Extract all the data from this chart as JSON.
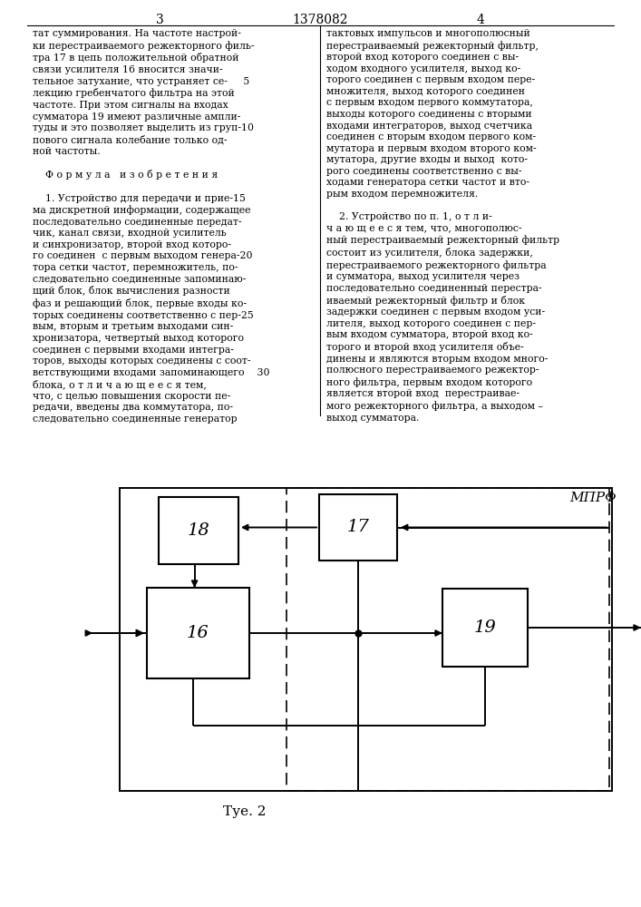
{
  "title_number": "1378082",
  "page_left": "3",
  "page_right": "4",
  "fig_label": "Τуе. 2",
  "mprf_label": "МПРΦ",
  "block_16_label": "16",
  "block_17_label": "17",
  "block_18_label": "18",
  "block_19_label": "19",
  "left_col": "тат суммирования. На частоте настрой-\nки перестраиваемого режекторного филь-\nтра 17 в цепь положительной обратной\nсвязи усилителя 16 вносится значи-\nтельное затухание, что устраняет се-     5\nлекцию гребенчатого фильтра на этой\nчастоте. При этом сигналы на входах\nсумматора 19 имеют различные ампли-\nтуды и это позволяет выделить из груп-10\nпового сигнала колебание только од-\nной частоты.\n\n    Ф о р м у л а   и з о б р е т е н и я\n\n    1. Устройство для передачи и прие-15\nма дискретной информации, содержащее\nпоследовательно соединенные передат-\nчик, канал связи, входной усилитель\nи синхронизатор, второй вход которо-\nго соединен  с первым выходом генера-20\nтора сетки частот, перемножитель, по-\nследовательно соединенные запоминаю-\nщий блок, блок вычисления разности\nфаз и решающий блок, первые входы ко-\nторых соединены соответственно с пер-25\nвым, вторым и третьим выходами син-\nхронизатора, четвертый выход которого\nсоединен с первыми входами интегра-\nторов, выходы которых соединены с соот-\nветствующими входами запоминающего    30\nблока, о т л и ч а ю щ е е с я тем,\nчто, с целью повышения скорости пе-\nредачи, введены два коммутатора, по-\nследовательно соединенные генератор",
  "right_col": "тактовых импульсов и многополюсный\nперестраиваемый режекторный фильтр,\nвторой вход которого соединен с вы-\nходом входного усилителя, выход ко-\nторого соединен с первым входом пере-\nмножителя, выход которого соединен\nс первым входом первого коммутатора,\nвыходы которого соединены с вторыми\nвходами интеграторов, выход счетчика\nсоединен с вторым входом первого ком-\nмутатора и первым входом второго ком-\nмутатора, другие входы и выход  кото-\nрого соединены соответственно с вы-\nходами генератора сетки частот и вто-\nрым входом перемножителя.\n\n    2. Устройство по п. 1, о т л и-\nч а ю щ е е с я тем, что, многополюс-\nный перестраиваемый режекторный фильтр\nсостоит из усилителя, блока задержки,\nперестраиваемого режекторного фильтра\nи сумматора, выход усилителя через\nпоследовательно соединенный перестра-\nиваемый режекторный фильтр и блок\nзадержки соединен с первым входом уси-\nлителя, выход которого соединен с пер-\nвым входом сумматора, второй вход ко-\nторого и второй вход усилителя объе-\nдинены и являются вторым входом много-\nполюсного перестраиваемого режектор-\nного фильтра, первым входом которого\nявляется второй вход  перестраивае-\nмого режекторного фильтра, а выходом –\nвыход сумматора.",
  "background_color": "#ffffff",
  "line_color": "#000000",
  "text_color": "#000000"
}
